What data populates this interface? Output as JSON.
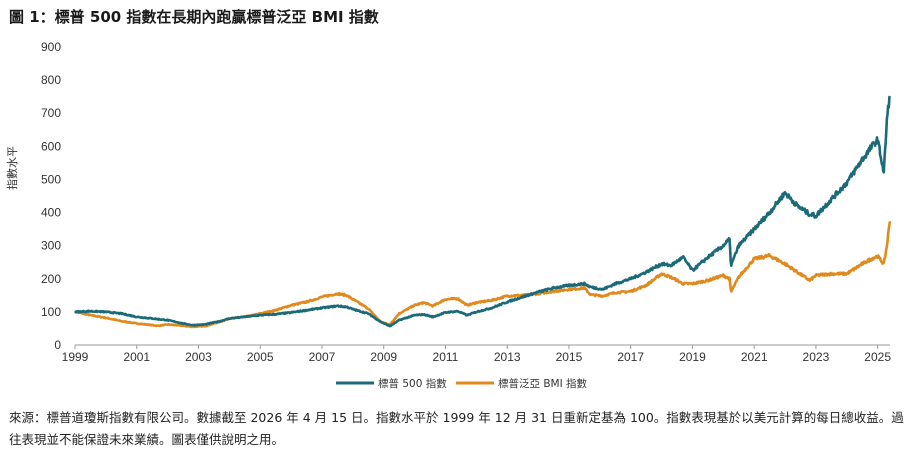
{
  "title": "圖 1：標普 500 指數在長期內跑贏標普泛亞 BMI 指數",
  "source": "來源：標普道瓊斯指數有限公司。數據截至 2026 年 4 月 15 日。指數水平於 1999 年 12 月 31 日重新定基為 100。指數表現基於以美元計算的每日總收益。過往表現並不能保證未來業績。圖表僅供說明之用。",
  "chart_data": {
    "type": "line",
    "title": "",
    "xlabel": "",
    "ylabel": "指數水平",
    "xlim": [
      1999,
      2025.4
    ],
    "ylim": [
      0,
      900
    ],
    "x_ticks": [
      "1999",
      "2001",
      "2003",
      "2005",
      "2007",
      "2009",
      "2011",
      "2013",
      "2015",
      "2017",
      "2019",
      "2021",
      "2023",
      "2025"
    ],
    "y_ticks": [
      "0",
      "100",
      "200",
      "300",
      "400",
      "500",
      "600",
      "700",
      "800",
      "900"
    ],
    "legend_position": "bottom-center",
    "grid": false,
    "series": [
      {
        "name": "標普 500 指數",
        "color": "#1B6A7A",
        "points": [
          [
            1999.0,
            100
          ],
          [
            1999.5,
            102
          ],
          [
            2000.0,
            100
          ],
          [
            2000.5,
            95
          ],
          [
            2001.0,
            85
          ],
          [
            2001.7,
            78
          ],
          [
            2002.0,
            75
          ],
          [
            2002.5,
            65
          ],
          [
            2002.8,
            60
          ],
          [
            2003.2,
            62
          ],
          [
            2003.7,
            72
          ],
          [
            2004.0,
            80
          ],
          [
            2004.5,
            85
          ],
          [
            2005.0,
            90
          ],
          [
            2005.5,
            93
          ],
          [
            2006.0,
            98
          ],
          [
            2006.5,
            105
          ],
          [
            2007.0,
            112
          ],
          [
            2007.5,
            118
          ],
          [
            2007.8,
            115
          ],
          [
            2008.0,
            108
          ],
          [
            2008.5,
            95
          ],
          [
            2008.9,
            70
          ],
          [
            2009.2,
            57
          ],
          [
            2009.5,
            75
          ],
          [
            2010.0,
            90
          ],
          [
            2010.3,
            92
          ],
          [
            2010.6,
            85
          ],
          [
            2011.0,
            98
          ],
          [
            2011.4,
            102
          ],
          [
            2011.7,
            90
          ],
          [
            2012.0,
            100
          ],
          [
            2012.5,
            112
          ],
          [
            2013.0,
            130
          ],
          [
            2013.5,
            145
          ],
          [
            2014.0,
            160
          ],
          [
            2014.5,
            172
          ],
          [
            2015.0,
            180
          ],
          [
            2015.5,
            185
          ],
          [
            2015.7,
            175
          ],
          [
            2016.1,
            168
          ],
          [
            2016.5,
            185
          ],
          [
            2017.0,
            200
          ],
          [
            2017.5,
            220
          ],
          [
            2018.0,
            245
          ],
          [
            2018.3,
            240
          ],
          [
            2018.7,
            265
          ],
          [
            2019.0,
            225
          ],
          [
            2019.5,
            265
          ],
          [
            2020.0,
            300
          ],
          [
            2020.2,
            320
          ],
          [
            2020.25,
            240
          ],
          [
            2020.5,
            300
          ],
          [
            2021.0,
            350
          ],
          [
            2021.5,
            400
          ],
          [
            2022.0,
            460
          ],
          [
            2022.4,
            420
          ],
          [
            2022.8,
            395
          ],
          [
            2023.0,
            390
          ],
          [
            2023.5,
            440
          ],
          [
            2024.0,
            490
          ],
          [
            2024.5,
            560
          ],
          [
            2024.9,
            610
          ],
          [
            2025.0,
            620
          ],
          [
            2025.2,
            520
          ],
          [
            2025.3,
            680
          ],
          [
            2025.4,
            760
          ]
        ]
      },
      {
        "name": "標普泛亞 BMI 指數",
        "color": "#E08A1E",
        "points": [
          [
            1999.0,
            100
          ],
          [
            1999.5,
            90
          ],
          [
            2000.0,
            82
          ],
          [
            2000.5,
            72
          ],
          [
            2001.0,
            65
          ],
          [
            2001.7,
            58
          ],
          [
            2002.0,
            62
          ],
          [
            2002.5,
            58
          ],
          [
            2002.8,
            55
          ],
          [
            2003.2,
            57
          ],
          [
            2003.7,
            70
          ],
          [
            2004.0,
            80
          ],
          [
            2004.5,
            85
          ],
          [
            2005.0,
            95
          ],
          [
            2005.5,
            105
          ],
          [
            2006.0,
            120
          ],
          [
            2006.5,
            130
          ],
          [
            2007.0,
            145
          ],
          [
            2007.5,
            155
          ],
          [
            2007.8,
            150
          ],
          [
            2008.0,
            138
          ],
          [
            2008.5,
            110
          ],
          [
            2008.9,
            70
          ],
          [
            2009.2,
            62
          ],
          [
            2009.5,
            95
          ],
          [
            2010.0,
            120
          ],
          [
            2010.3,
            128
          ],
          [
            2010.6,
            118
          ],
          [
            2011.0,
            138
          ],
          [
            2011.4,
            140
          ],
          [
            2011.7,
            120
          ],
          [
            2012.0,
            128
          ],
          [
            2012.5,
            135
          ],
          [
            2013.0,
            148
          ],
          [
            2013.5,
            150
          ],
          [
            2014.0,
            155
          ],
          [
            2014.5,
            162
          ],
          [
            2015.0,
            168
          ],
          [
            2015.5,
            172
          ],
          [
            2015.7,
            152
          ],
          [
            2016.1,
            148
          ],
          [
            2016.5,
            158
          ],
          [
            2017.0,
            162
          ],
          [
            2017.5,
            180
          ],
          [
            2018.0,
            215
          ],
          [
            2018.3,
            205
          ],
          [
            2018.7,
            185
          ],
          [
            2019.0,
            185
          ],
          [
            2019.5,
            195
          ],
          [
            2020.0,
            210
          ],
          [
            2020.2,
            200
          ],
          [
            2020.25,
            160
          ],
          [
            2020.5,
            205
          ],
          [
            2021.0,
            260
          ],
          [
            2021.5,
            270
          ],
          [
            2022.0,
            245
          ],
          [
            2022.4,
            220
          ],
          [
            2022.8,
            195
          ],
          [
            2023.0,
            210
          ],
          [
            2023.5,
            215
          ],
          [
            2024.0,
            215
          ],
          [
            2024.5,
            245
          ],
          [
            2024.9,
            265
          ],
          [
            2025.0,
            268
          ],
          [
            2025.2,
            245
          ],
          [
            2025.3,
            300
          ],
          [
            2025.4,
            380
          ]
        ]
      }
    ]
  }
}
